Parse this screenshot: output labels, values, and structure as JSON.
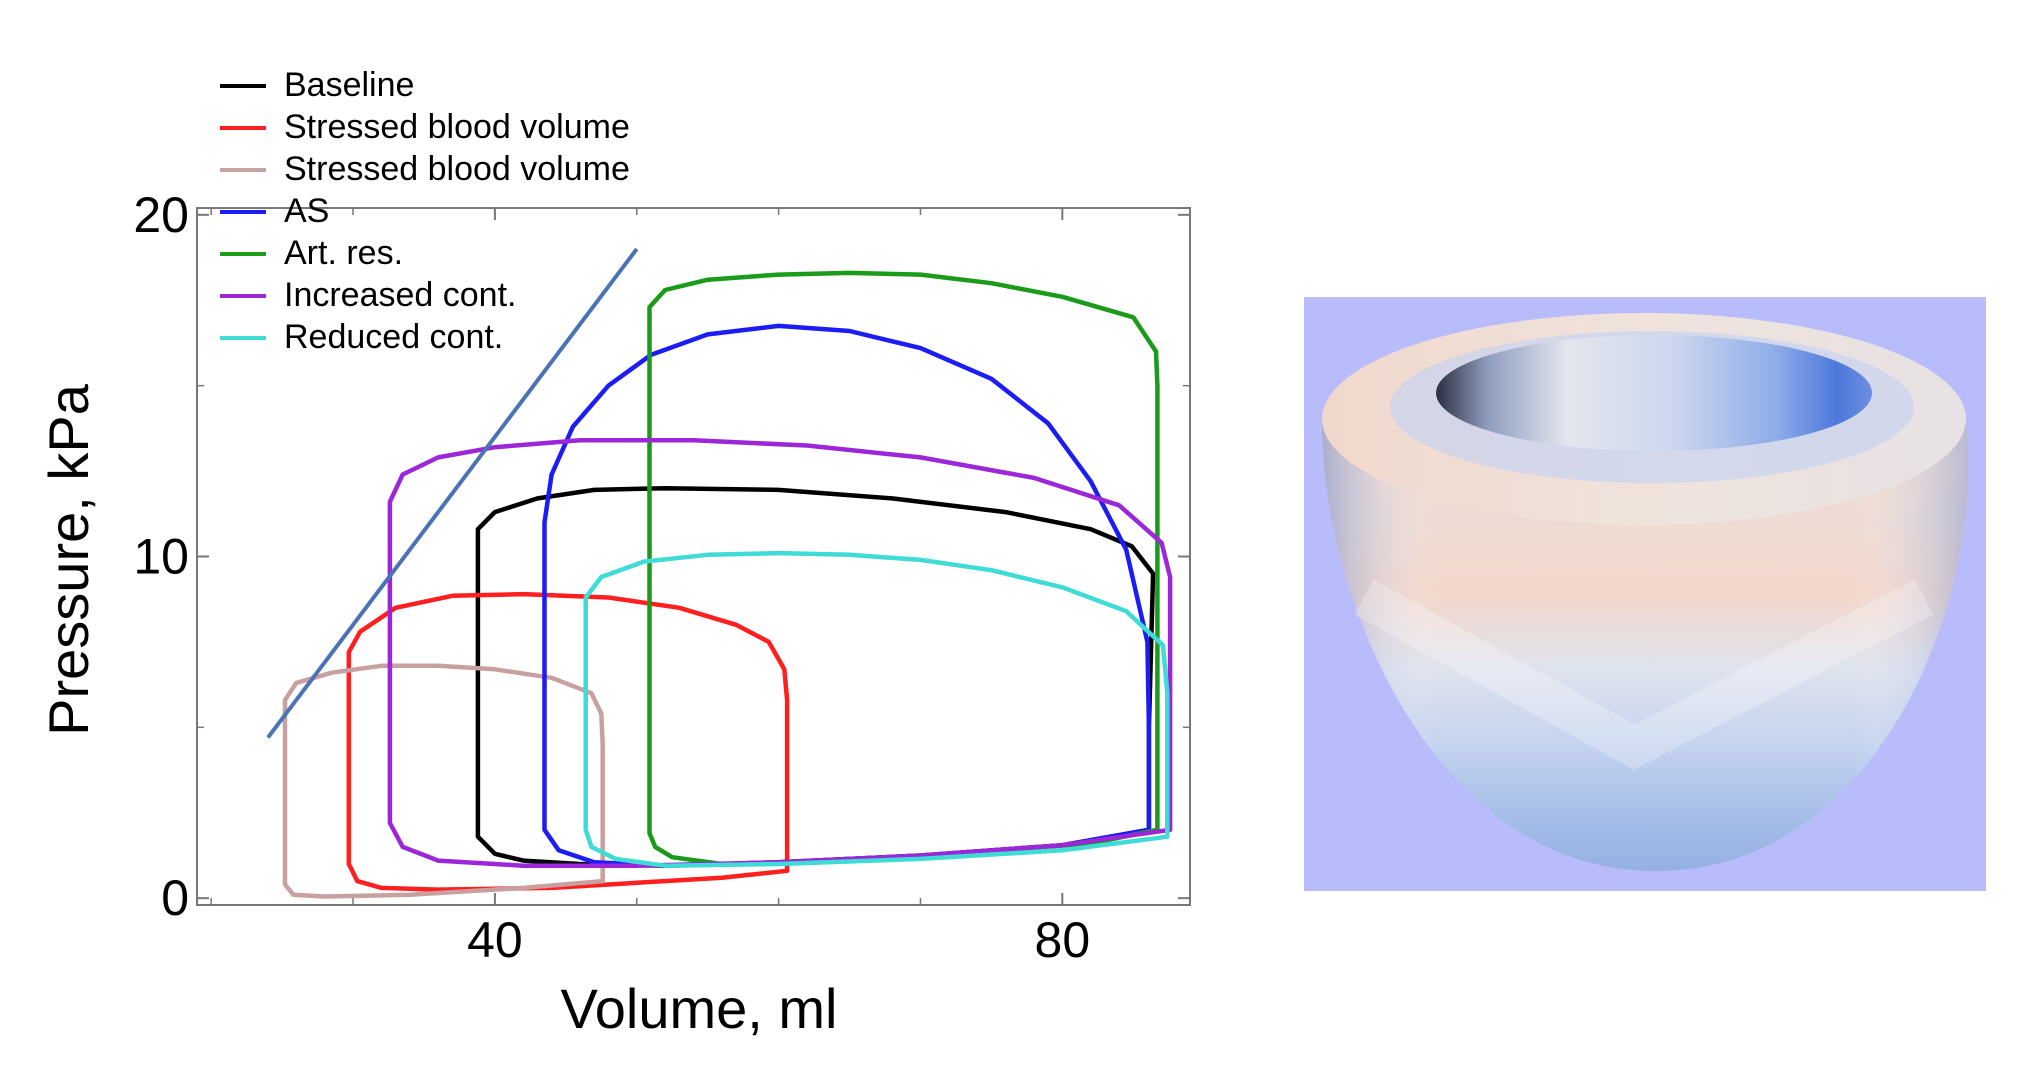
{
  "chart_data": {
    "type": "line",
    "title": "",
    "xlabel": "Volume, ml",
    "ylabel": "Pressure, kPa",
    "xlim": [
      19,
      89
    ],
    "ylim": [
      -0.2,
      20.2
    ],
    "xticks": [
      40,
      80
    ],
    "yticks": [
      0,
      10,
      20
    ],
    "grid": false,
    "legend_position": "top-left, above plot area",
    "series": [
      {
        "name": "Baseline",
        "color": "#000000",
        "points": [
          [
            38.8,
            1.8
          ],
          [
            38.8,
            10.8
          ],
          [
            40,
            11.3
          ],
          [
            43,
            11.7
          ],
          [
            47,
            11.95
          ],
          [
            52,
            12.0
          ],
          [
            60,
            11.95
          ],
          [
            68,
            11.7
          ],
          [
            76,
            11.3
          ],
          [
            82,
            10.8
          ],
          [
            84.9,
            10.3
          ],
          [
            86.4,
            9.5
          ],
          [
            86.3,
            8.0
          ],
          [
            86.1,
            5.0
          ],
          [
            86.1,
            2.0
          ],
          [
            80,
            1.55
          ],
          [
            70,
            1.25
          ],
          [
            60,
            1.05
          ],
          [
            52,
            0.95
          ],
          [
            46,
            1.0
          ],
          [
            42,
            1.1
          ],
          [
            40,
            1.3
          ],
          [
            38.8,
            1.8
          ]
        ]
      },
      {
        "name": "Stressed blood volume",
        "color": "#ff1f1f",
        "points": [
          [
            29.7,
            1.0
          ],
          [
            29.7,
            7.2
          ],
          [
            30.5,
            7.8
          ],
          [
            33,
            8.5
          ],
          [
            37,
            8.85
          ],
          [
            42,
            8.9
          ],
          [
            48,
            8.8
          ],
          [
            53,
            8.5
          ],
          [
            57,
            8.0
          ],
          [
            59.3,
            7.5
          ],
          [
            60.4,
            6.7
          ],
          [
            60.6,
            5.8
          ],
          [
            60.6,
            3.0
          ],
          [
            60.6,
            0.8
          ],
          [
            56,
            0.6
          ],
          [
            50,
            0.45
          ],
          [
            44,
            0.3
          ],
          [
            36,
            0.25
          ],
          [
            32,
            0.3
          ],
          [
            30.3,
            0.5
          ],
          [
            29.7,
            1.0
          ]
        ]
      },
      {
        "name": "Stressed blood volume",
        "color": "#c9a0a0",
        "points": [
          [
            25.2,
            0.4
          ],
          [
            25.2,
            5.8
          ],
          [
            26,
            6.3
          ],
          [
            28.5,
            6.6
          ],
          [
            32,
            6.8
          ],
          [
            36,
            6.8
          ],
          [
            40,
            6.7
          ],
          [
            44,
            6.45
          ],
          [
            46.8,
            6.0
          ],
          [
            47.5,
            5.4
          ],
          [
            47.6,
            4.5
          ],
          [
            47.6,
            0.5
          ],
          [
            42,
            0.3
          ],
          [
            34,
            0.1
          ],
          [
            28,
            0.05
          ],
          [
            25.8,
            0.1
          ],
          [
            25.2,
            0.4
          ]
        ]
      },
      {
        "name": "AS",
        "color": "#1c1cf5",
        "points": [
          [
            43.5,
            2.0
          ],
          [
            43.5,
            11.0
          ],
          [
            44,
            12.4
          ],
          [
            45.5,
            13.8
          ],
          [
            48,
            15.0
          ],
          [
            51,
            15.9
          ],
          [
            55,
            16.5
          ],
          [
            60,
            16.75
          ],
          [
            65,
            16.6
          ],
          [
            70,
            16.1
          ],
          [
            75,
            15.2
          ],
          [
            79,
            13.9
          ],
          [
            82,
            12.2
          ],
          [
            84.5,
            10.2
          ],
          [
            86,
            7.5
          ],
          [
            86.1,
            5.0
          ],
          [
            86.1,
            2.0
          ],
          [
            80,
            1.55
          ],
          [
            70,
            1.25
          ],
          [
            60,
            1.05
          ],
          [
            52,
            0.95
          ],
          [
            47,
            1.05
          ],
          [
            44.5,
            1.4
          ],
          [
            43.5,
            2.0
          ]
        ]
      },
      {
        "name": "Art. res.",
        "color": "#1a9c1a",
        "points": [
          [
            50.9,
            1.9
          ],
          [
            50.9,
            17.3
          ],
          [
            52,
            17.8
          ],
          [
            55,
            18.1
          ],
          [
            60,
            18.25
          ],
          [
            65,
            18.3
          ],
          [
            70,
            18.25
          ],
          [
            75,
            18.0
          ],
          [
            80,
            17.6
          ],
          [
            85,
            17.0
          ],
          [
            86.6,
            16.0
          ],
          [
            86.7,
            15.0
          ],
          [
            86.7,
            2.0
          ],
          [
            82,
            1.6
          ],
          [
            72,
            1.3
          ],
          [
            62,
            1.05
          ],
          [
            56,
            1.0
          ],
          [
            52.5,
            1.2
          ],
          [
            51.3,
            1.5
          ],
          [
            50.9,
            1.9
          ]
        ]
      },
      {
        "name": "Increased cont.",
        "color": "#9c27d8",
        "points": [
          [
            32.6,
            2.2
          ],
          [
            32.6,
            11.6
          ],
          [
            33.5,
            12.4
          ],
          [
            36,
            12.9
          ],
          [
            40,
            13.2
          ],
          [
            46,
            13.4
          ],
          [
            54,
            13.4
          ],
          [
            62,
            13.25
          ],
          [
            70,
            12.9
          ],
          [
            78,
            12.3
          ],
          [
            84,
            11.5
          ],
          [
            87,
            10.4
          ],
          [
            87.6,
            9.4
          ],
          [
            87.6,
            2.0
          ],
          [
            80,
            1.55
          ],
          [
            70,
            1.25
          ],
          [
            60,
            1.05
          ],
          [
            50,
            0.95
          ],
          [
            42,
            0.95
          ],
          [
            36,
            1.1
          ],
          [
            33.5,
            1.5
          ],
          [
            32.6,
            2.2
          ]
        ]
      },
      {
        "name": "Reduced cont.",
        "color": "#3fdbd6",
        "points": [
          [
            46.4,
            2.0
          ],
          [
            46.4,
            8.8
          ],
          [
            47.5,
            9.4
          ],
          [
            50.5,
            9.85
          ],
          [
            55,
            10.05
          ],
          [
            60,
            10.1
          ],
          [
            65,
            10.05
          ],
          [
            70,
            9.9
          ],
          [
            75,
            9.6
          ],
          [
            80,
            9.1
          ],
          [
            84.5,
            8.4
          ],
          [
            87.1,
            7.4
          ],
          [
            87.4,
            6.0
          ],
          [
            87.4,
            1.8
          ],
          [
            80,
            1.4
          ],
          [
            70,
            1.15
          ],
          [
            60,
            1.0
          ],
          [
            52,
            0.95
          ],
          [
            48.5,
            1.15
          ],
          [
            46.8,
            1.5
          ],
          [
            46.4,
            2.0
          ]
        ]
      }
    ],
    "annotations": [
      {
        "type": "line",
        "color": "#4a73b5",
        "points": [
          [
            24,
            4.7
          ],
          [
            50,
            19.0
          ]
        ]
      }
    ]
  },
  "heart_panel": {
    "background": "#b8bcfb"
  }
}
